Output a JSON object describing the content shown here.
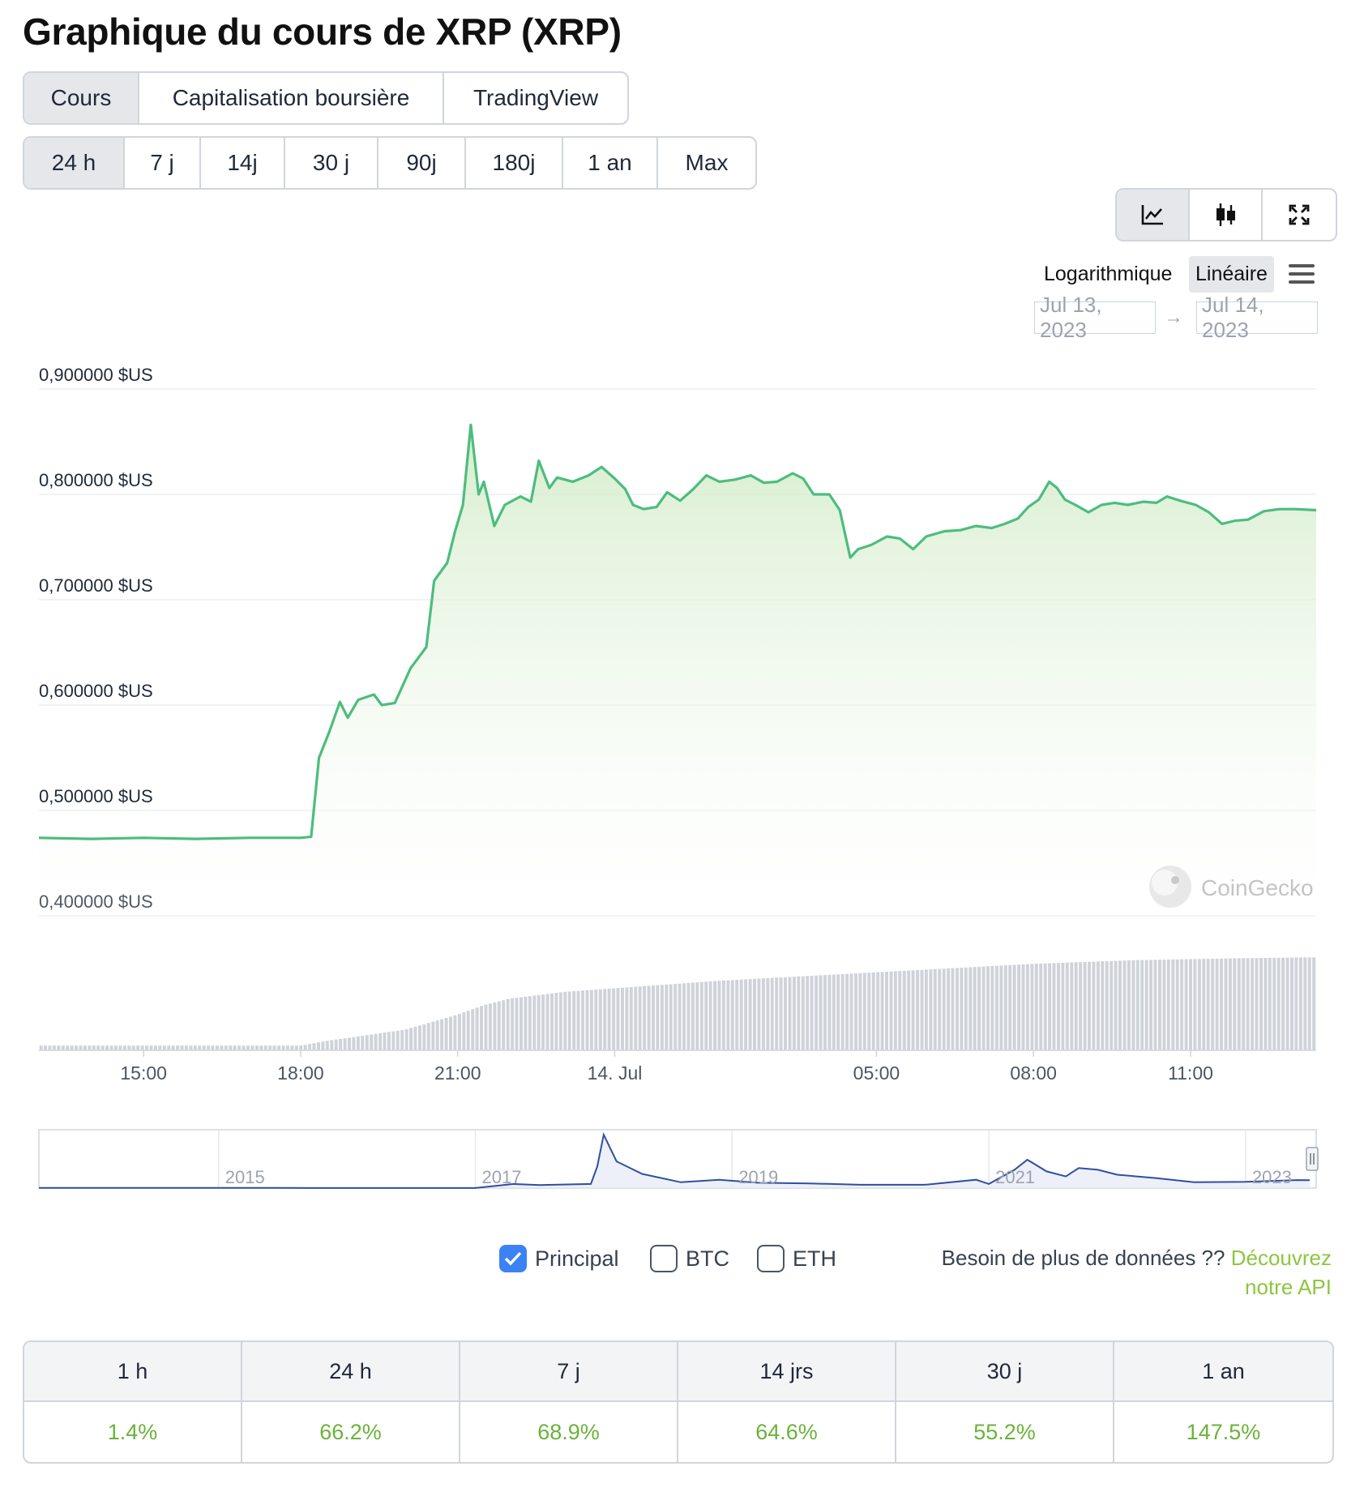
{
  "page": {
    "title": "Graphique du cours de XRP (XRP)"
  },
  "tabs": [
    {
      "label": "Cours",
      "active": true
    },
    {
      "label": "Capitalisation boursière",
      "active": false
    },
    {
      "label": "TradingView",
      "active": false
    }
  ],
  "ranges": [
    {
      "label": "24 h",
      "active": true
    },
    {
      "label": "7 j",
      "active": false
    },
    {
      "label": "14j",
      "active": false
    },
    {
      "label": "30 j",
      "active": false
    },
    {
      "label": "90j",
      "active": false
    },
    {
      "label": "180j",
      "active": false
    },
    {
      "label": "1 an",
      "active": false
    },
    {
      "label": "Max",
      "active": false
    }
  ],
  "tools": {
    "line_icon": "line-chart-icon",
    "candle_icon": "candlestick-icon",
    "expand_icon": "expand-icon",
    "active": "line"
  },
  "scale": {
    "log_label": "Logarithmique",
    "linear_label": "Linéaire",
    "active": "linear"
  },
  "date_range": {
    "from": "Jul 13, 2023",
    "arrow": "→",
    "to": "Jul 14, 2023"
  },
  "watermark": "CoinGecko",
  "colors": {
    "line": "#4cbd7e",
    "area_top": "#cfeac4",
    "navigator_line": "#2f4fa0",
    "positive": "#6bb23a",
    "api_link": "#8dc63f",
    "checkbox": "#3b82f6"
  },
  "chart_data": {
    "type": "line",
    "y_unit": "$US",
    "ylim": [
      0.4,
      0.9
    ],
    "y_ticks": [
      "0,400000 $US",
      "0,500000 $US",
      "0,600000 $US",
      "0,700000 $US",
      "0,800000 $US",
      "0,900000 $US"
    ],
    "y_tick_values": [
      0.4,
      0.5,
      0.6,
      0.7,
      0.8,
      0.9
    ],
    "x_range_hours": [
      -2.0,
      22.4
    ],
    "x_ticks": [
      {
        "label": "15:00",
        "hour": 0
      },
      {
        "label": "18:00",
        "hour": 3
      },
      {
        "label": "21:00",
        "hour": 6
      },
      {
        "label": "14. Jul",
        "hour": 9
      },
      {
        "label": "05:00",
        "hour": 14
      },
      {
        "label": "08:00",
        "hour": 17
      },
      {
        "label": "11:00",
        "hour": 20
      }
    ],
    "price_series": {
      "name": "Principal",
      "points": [
        [
          -2.0,
          0.474
        ],
        [
          -1.0,
          0.473
        ],
        [
          0.0,
          0.474
        ],
        [
          1.0,
          0.473
        ],
        [
          2.0,
          0.474
        ],
        [
          3.0,
          0.474
        ],
        [
          3.2,
          0.475
        ],
        [
          3.35,
          0.55
        ],
        [
          3.55,
          0.575
        ],
        [
          3.75,
          0.603
        ],
        [
          3.9,
          0.588
        ],
        [
          4.1,
          0.605
        ],
        [
          4.4,
          0.61
        ],
        [
          4.55,
          0.6
        ],
        [
          4.8,
          0.602
        ],
        [
          5.1,
          0.635
        ],
        [
          5.4,
          0.655
        ],
        [
          5.55,
          0.718
        ],
        [
          5.8,
          0.735
        ],
        [
          5.95,
          0.765
        ],
        [
          6.1,
          0.79
        ],
        [
          6.25,
          0.866
        ],
        [
          6.4,
          0.8
        ],
        [
          6.5,
          0.812
        ],
        [
          6.7,
          0.77
        ],
        [
          6.9,
          0.79
        ],
        [
          7.2,
          0.798
        ],
        [
          7.4,
          0.793
        ],
        [
          7.55,
          0.832
        ],
        [
          7.75,
          0.806
        ],
        [
          7.9,
          0.816
        ],
        [
          8.2,
          0.812
        ],
        [
          8.5,
          0.818
        ],
        [
          8.75,
          0.826
        ],
        [
          9.0,
          0.815
        ],
        [
          9.2,
          0.805
        ],
        [
          9.35,
          0.79
        ],
        [
          9.55,
          0.786
        ],
        [
          9.8,
          0.788
        ],
        [
          10.0,
          0.802
        ],
        [
          10.25,
          0.794
        ],
        [
          10.5,
          0.805
        ],
        [
          10.75,
          0.818
        ],
        [
          11.0,
          0.812
        ],
        [
          11.3,
          0.814
        ],
        [
          11.6,
          0.818
        ],
        [
          11.85,
          0.811
        ],
        [
          12.1,
          0.812
        ],
        [
          12.4,
          0.82
        ],
        [
          12.6,
          0.815
        ],
        [
          12.8,
          0.8
        ],
        [
          13.1,
          0.8
        ],
        [
          13.3,
          0.785
        ],
        [
          13.5,
          0.74
        ],
        [
          13.65,
          0.748
        ],
        [
          13.9,
          0.752
        ],
        [
          14.2,
          0.76
        ],
        [
          14.45,
          0.758
        ],
        [
          14.7,
          0.748
        ],
        [
          14.95,
          0.76
        ],
        [
          15.3,
          0.765
        ],
        [
          15.6,
          0.766
        ],
        [
          15.9,
          0.77
        ],
        [
          16.2,
          0.768
        ],
        [
          16.45,
          0.772
        ],
        [
          16.7,
          0.777
        ],
        [
          16.9,
          0.788
        ],
        [
          17.1,
          0.795
        ],
        [
          17.3,
          0.812
        ],
        [
          17.45,
          0.806
        ],
        [
          17.6,
          0.795
        ],
        [
          17.8,
          0.79
        ],
        [
          18.05,
          0.783
        ],
        [
          18.3,
          0.79
        ],
        [
          18.55,
          0.792
        ],
        [
          18.8,
          0.79
        ],
        [
          19.1,
          0.793
        ],
        [
          19.35,
          0.792
        ],
        [
          19.55,
          0.798
        ],
        [
          19.8,
          0.794
        ],
        [
          20.1,
          0.79
        ],
        [
          20.35,
          0.783
        ],
        [
          20.6,
          0.772
        ],
        [
          20.85,
          0.775
        ],
        [
          21.1,
          0.776
        ],
        [
          21.4,
          0.784
        ],
        [
          21.7,
          0.786
        ],
        [
          22.0,
          0.786
        ],
        [
          22.4,
          0.785
        ]
      ]
    },
    "volume_series": {
      "name": "Volume",
      "points": [
        [
          -2.0,
          0.05
        ],
        [
          3.0,
          0.05
        ],
        [
          3.5,
          0.1
        ],
        [
          4.0,
          0.14
        ],
        [
          5.0,
          0.22
        ],
        [
          6.0,
          0.38
        ],
        [
          6.5,
          0.48
        ],
        [
          7.0,
          0.55
        ],
        [
          8.0,
          0.62
        ],
        [
          9.0,
          0.66
        ],
        [
          10.0,
          0.7
        ],
        [
          11.0,
          0.74
        ],
        [
          12.0,
          0.77
        ],
        [
          13.0,
          0.8
        ],
        [
          14.0,
          0.83
        ],
        [
          15.0,
          0.86
        ],
        [
          16.0,
          0.89
        ],
        [
          17.0,
          0.92
        ],
        [
          18.0,
          0.94
        ],
        [
          19.0,
          0.96
        ],
        [
          20.0,
          0.97
        ],
        [
          21.0,
          0.98
        ],
        [
          22.4,
          0.99
        ]
      ]
    },
    "navigator": {
      "x_labels": [
        "2015",
        "2017",
        "2019",
        "2021",
        "2023"
      ],
      "x_label_years": [
        2015,
        2017,
        2019,
        2021,
        2023
      ],
      "x_range_years": [
        2013.6,
        2023.55
      ],
      "ylim": [
        0,
        3.4
      ],
      "points": [
        [
          2013.6,
          0.01
        ],
        [
          2014.5,
          0.01
        ],
        [
          2015.5,
          0.008
        ],
        [
          2016.5,
          0.006
        ],
        [
          2017.0,
          0.007
        ],
        [
          2017.3,
          0.25
        ],
        [
          2017.5,
          0.18
        ],
        [
          2017.9,
          0.25
        ],
        [
          2017.95,
          1.3
        ],
        [
          2018.0,
          3.2
        ],
        [
          2018.1,
          1.6
        ],
        [
          2018.3,
          0.85
        ],
        [
          2018.6,
          0.35
        ],
        [
          2018.9,
          0.5
        ],
        [
          2019.2,
          0.32
        ],
        [
          2019.6,
          0.28
        ],
        [
          2020.0,
          0.2
        ],
        [
          2020.5,
          0.2
        ],
        [
          2020.9,
          0.5
        ],
        [
          2021.0,
          0.25
        ],
        [
          2021.2,
          1.1
        ],
        [
          2021.3,
          1.7
        ],
        [
          2021.45,
          1.0
        ],
        [
          2021.6,
          0.7
        ],
        [
          2021.7,
          1.2
        ],
        [
          2021.85,
          1.1
        ],
        [
          2022.0,
          0.8
        ],
        [
          2022.3,
          0.6
        ],
        [
          2022.6,
          0.35
        ],
        [
          2023.0,
          0.38
        ],
        [
          2023.4,
          0.48
        ],
        [
          2023.5,
          0.47
        ]
      ]
    }
  },
  "legend": [
    {
      "label": "Principal",
      "checked": true
    },
    {
      "label": "BTC",
      "checked": false
    },
    {
      "label": "ETH",
      "checked": false
    }
  ],
  "api": {
    "text": "Besoin de plus de données ??",
    "link": "Découvrez notre API"
  },
  "performance": {
    "headers": [
      "1 h",
      "24 h",
      "7 j",
      "14 jrs",
      "30 j",
      "1 an"
    ],
    "values": [
      "1.4%",
      "66.2%",
      "68.9%",
      "64.6%",
      "55.2%",
      "147.5%"
    ]
  }
}
